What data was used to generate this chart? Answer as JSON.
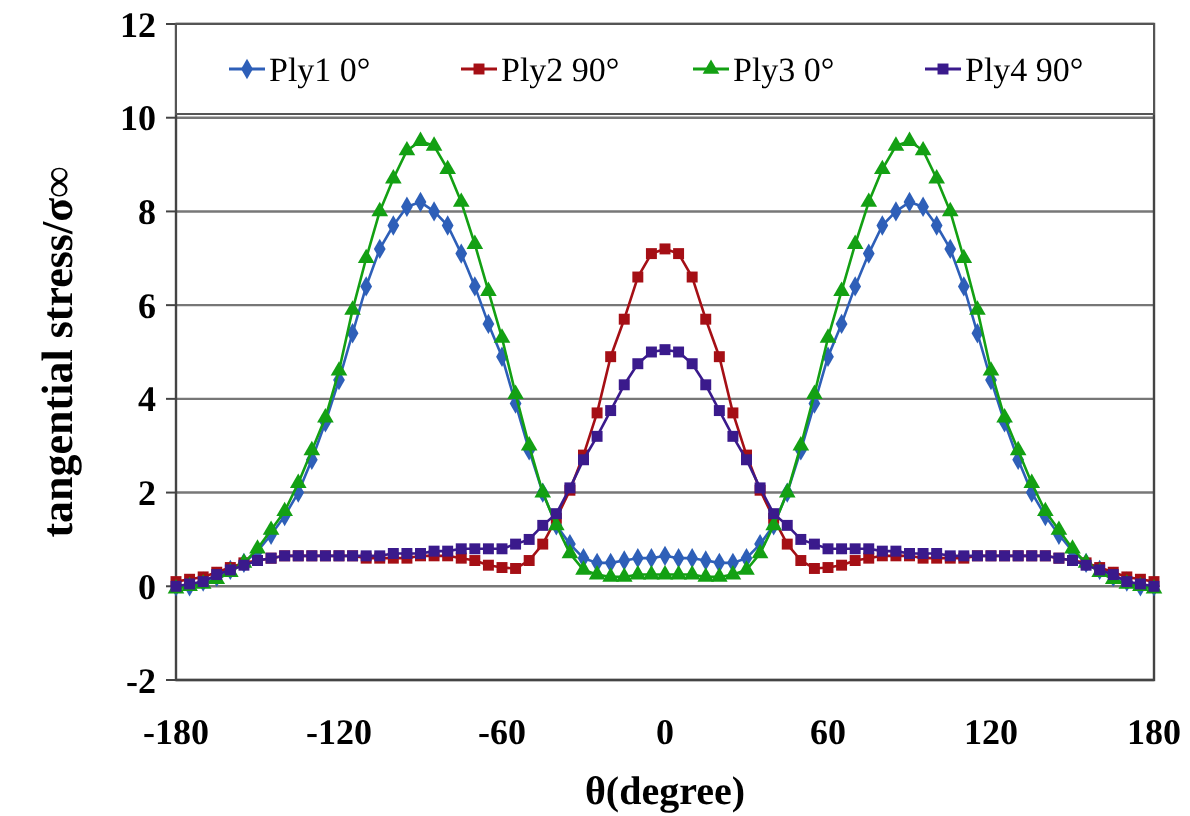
{
  "chart_data": {
    "type": "line",
    "xlabel": "θ(degree)",
    "ylabel": "tangential stress/σ∞",
    "grid": "y",
    "legend": "top",
    "line_style": "solid",
    "xlim": [
      -180,
      180
    ],
    "xticks": [
      -180,
      -120,
      -60,
      0,
      60,
      120,
      180
    ],
    "ylim": [
      -2,
      12
    ],
    "yticks": [
      -2,
      0,
      2,
      4,
      6,
      8,
      10,
      12
    ],
    "x": [
      -180,
      -175,
      -170,
      -165,
      -160,
      -155,
      -150,
      -145,
      -140,
      -135,
      -130,
      -125,
      -120,
      -115,
      -110,
      -105,
      -100,
      -95,
      -90,
      -85,
      -80,
      -75,
      -70,
      -65,
      -60,
      -55,
      -50,
      -45,
      -40,
      -35,
      -30,
      -25,
      -20,
      -15,
      -10,
      -5,
      0,
      5,
      10,
      15,
      20,
      25,
      30,
      35,
      40,
      45,
      50,
      55,
      60,
      65,
      70,
      75,
      80,
      85,
      90,
      95,
      100,
      105,
      110,
      115,
      120,
      125,
      130,
      135,
      140,
      145,
      150,
      155,
      160,
      165,
      170,
      175,
      180
    ],
    "series": [
      {
        "name": "Ply1 0°",
        "color": "#2e5fb8",
        "marker": "diamond",
        "values": [
          0,
          0,
          0.1,
          0.2,
          0.35,
          0.5,
          0.75,
          1.1,
          1.5,
          2.0,
          2.7,
          3.5,
          4.4,
          5.4,
          6.4,
          7.2,
          7.7,
          8.1,
          8.2,
          8.0,
          7.7,
          7.1,
          6.4,
          5.6,
          4.9,
          3.9,
          2.9,
          2.0,
          1.3,
          0.9,
          0.6,
          0.5,
          0.5,
          0.55,
          0.6,
          0.6,
          0.65,
          0.6,
          0.6,
          0.55,
          0.5,
          0.5,
          0.6,
          0.9,
          1.3,
          2.0,
          2.9,
          3.9,
          4.9,
          5.6,
          6.4,
          7.1,
          7.7,
          8.0,
          8.2,
          8.1,
          7.7,
          7.2,
          6.4,
          5.4,
          4.4,
          3.5,
          2.7,
          2.0,
          1.5,
          1.1,
          0.75,
          0.5,
          0.35,
          0.2,
          0.1,
          0,
          0
        ]
      },
      {
        "name": "Ply2 90°",
        "color": "#a50f15",
        "marker": "square",
        "values": [
          0.1,
          0.15,
          0.2,
          0.3,
          0.4,
          0.5,
          0.55,
          0.6,
          0.65,
          0.65,
          0.65,
          0.65,
          0.65,
          0.65,
          0.6,
          0.6,
          0.6,
          0.6,
          0.65,
          0.65,
          0.65,
          0.6,
          0.55,
          0.45,
          0.4,
          0.38,
          0.55,
          0.9,
          1.45,
          2.05,
          2.8,
          3.7,
          4.9,
          5.7,
          6.6,
          7.1,
          7.2,
          7.1,
          6.6,
          5.7,
          4.9,
          3.7,
          2.8,
          2.05,
          1.45,
          0.9,
          0.55,
          0.38,
          0.4,
          0.45,
          0.55,
          0.6,
          0.65,
          0.65,
          0.65,
          0.6,
          0.6,
          0.6,
          0.6,
          0.65,
          0.65,
          0.65,
          0.65,
          0.65,
          0.65,
          0.6,
          0.55,
          0.5,
          0.4,
          0.3,
          0.2,
          0.15,
          0.1
        ]
      },
      {
        "name": "Ply3 0°",
        "color": "#13a013",
        "marker": "triangle",
        "values": [
          -0.05,
          0,
          0.05,
          0.15,
          0.3,
          0.5,
          0.8,
          1.2,
          1.6,
          2.2,
          2.9,
          3.6,
          4.6,
          5.9,
          7.0,
          8.0,
          8.7,
          9.3,
          9.5,
          9.4,
          8.9,
          8.2,
          7.3,
          6.3,
          5.3,
          4.1,
          3.0,
          2.0,
          1.3,
          0.7,
          0.35,
          0.25,
          0.2,
          0.2,
          0.25,
          0.25,
          0.25,
          0.25,
          0.25,
          0.2,
          0.2,
          0.25,
          0.35,
          0.7,
          1.3,
          2.0,
          3.0,
          4.1,
          5.3,
          6.3,
          7.3,
          8.2,
          8.9,
          9.4,
          9.5,
          9.3,
          8.7,
          8.0,
          7.0,
          5.9,
          4.6,
          3.6,
          2.9,
          2.2,
          1.6,
          1.2,
          0.8,
          0.5,
          0.3,
          0.15,
          0.05,
          0,
          -0.05
        ]
      },
      {
        "name": "Ply4 90°",
        "color": "#3a1a8c",
        "marker": "square",
        "values": [
          0,
          0.05,
          0.1,
          0.25,
          0.35,
          0.45,
          0.55,
          0.6,
          0.65,
          0.65,
          0.65,
          0.65,
          0.65,
          0.65,
          0.65,
          0.65,
          0.7,
          0.7,
          0.7,
          0.75,
          0.75,
          0.8,
          0.8,
          0.8,
          0.8,
          0.9,
          1.0,
          1.3,
          1.55,
          2.1,
          2.7,
          3.2,
          3.75,
          4.3,
          4.75,
          5.0,
          5.05,
          5.0,
          4.75,
          4.3,
          3.75,
          3.2,
          2.7,
          2.1,
          1.55,
          1.3,
          1.0,
          0.9,
          0.8,
          0.8,
          0.8,
          0.8,
          0.75,
          0.75,
          0.7,
          0.7,
          0.7,
          0.65,
          0.65,
          0.65,
          0.65,
          0.65,
          0.65,
          0.65,
          0.65,
          0.6,
          0.55,
          0.45,
          0.35,
          0.25,
          0.1,
          0.05,
          0
        ]
      }
    ]
  }
}
